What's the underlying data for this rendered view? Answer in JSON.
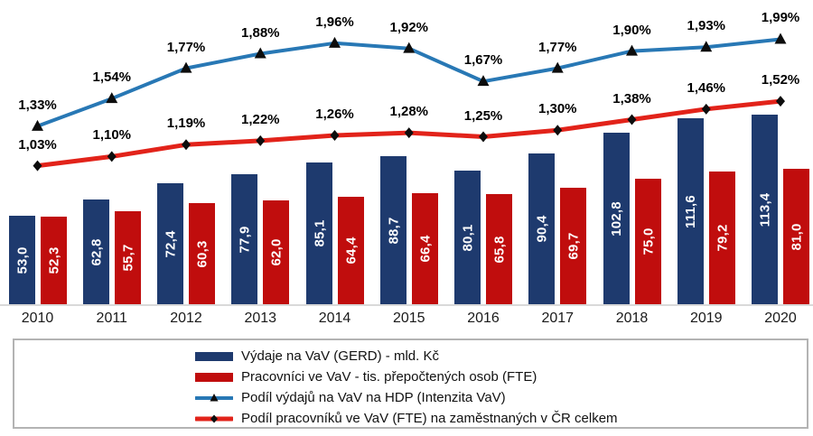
{
  "chart_data": {
    "type": "combo-bar-line",
    "categories": [
      "2010",
      "2011",
      "2012",
      "2013",
      "2014",
      "2015",
      "2016",
      "2017",
      "2018",
      "2019",
      "2020"
    ],
    "series": [
      {
        "name": "Výdaje na VaV (GERD) - mld. Kč",
        "type": "bar",
        "color": "#1e3a6e",
        "axis": "left",
        "values": [
          53.0,
          62.8,
          72.4,
          77.9,
          85.1,
          88.7,
          80.1,
          90.4,
          102.8,
          111.6,
          113.4
        ],
        "labels": [
          "53,0",
          "62,8",
          "72,4",
          "77,9",
          "85,1",
          "88,7",
          "80,1",
          "90,4",
          "102,8",
          "111,6",
          "113,4"
        ]
      },
      {
        "name": "Pracovníci ve VaV - tis. přepočtených osob (FTE)",
        "type": "bar",
        "color": "#c00d0d",
        "axis": "left",
        "values": [
          52.3,
          55.7,
          60.3,
          62.0,
          64.4,
          66.4,
          65.8,
          69.7,
          75.0,
          79.2,
          81.0
        ],
        "labels": [
          "52,3",
          "55,7",
          "60,3",
          "62,0",
          "64,4",
          "66,4",
          "65,8",
          "69,7",
          "75,0",
          "79,2",
          "81,0"
        ]
      },
      {
        "name": "Podíl výdajů na VaV na HDP (Intenzita VaV)",
        "type": "line",
        "color": "#2878b5",
        "marker": "triangle",
        "marker_color": "#0d0d0d",
        "axis": "right",
        "values": [
          1.33,
          1.54,
          1.77,
          1.88,
          1.96,
          1.92,
          1.67,
          1.77,
          1.9,
          1.93,
          1.99
        ],
        "labels": [
          "1,33%",
          "1,54%",
          "1,77%",
          "1,88%",
          "1,96%",
          "1,92%",
          "1,67%",
          "1,77%",
          "1,90%",
          "1,93%",
          "1,99%"
        ]
      },
      {
        "name": "Podíl pracovníků ve VaV (FTE) na zaměstnaných v ČR celkem",
        "type": "line",
        "color": "#e2231a",
        "marker": "diamond",
        "marker_color": "#0d0d0d",
        "axis": "right",
        "values": [
          1.03,
          1.1,
          1.19,
          1.22,
          1.26,
          1.28,
          1.25,
          1.3,
          1.38,
          1.46,
          1.52
        ],
        "labels": [
          "1,03%",
          "1,10%",
          "1,19%",
          "1,22%",
          "1,26%",
          "1,28%",
          "1,25%",
          "1,30%",
          "1,38%",
          "1,46%",
          "1,52%"
        ]
      }
    ],
    "left_axis": {
      "min": 0,
      "max": 120,
      "visible": false
    },
    "right_axis": {
      "min": 0,
      "max": 2.05,
      "unit": "%",
      "visible": false
    },
    "grid": false,
    "legend_position": "bottom",
    "bar_value_label_color": "#ffffff",
    "line_value_label_color": "#000000",
    "baseline_color": "#d9d9d9"
  }
}
